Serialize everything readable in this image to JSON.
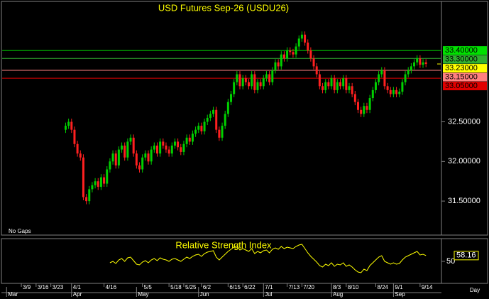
{
  "chart_data": {
    "type": "candlestick",
    "title": "USD Futures  Sep-26  (USDU26)",
    "note": "No Gaps",
    "x_unit": "Day",
    "up_color": "#00d000",
    "down_color": "#ff2020",
    "x": [
      15,
      16,
      17,
      18,
      19,
      20,
      21,
      22,
      23,
      24,
      25,
      26,
      27,
      28,
      29,
      30,
      31,
      32,
      33,
      34,
      35,
      36,
      37,
      38,
      39,
      40,
      41,
      42,
      43,
      44,
      45,
      46,
      47,
      48,
      49,
      50,
      51,
      52,
      53,
      54,
      55,
      56,
      57,
      58,
      59,
      60,
      61,
      62,
      63,
      64,
      65,
      66,
      67,
      68,
      69,
      70,
      71,
      72,
      73,
      74,
      75,
      76,
      77,
      78,
      79,
      80,
      81,
      82,
      83,
      84,
      85,
      86,
      87,
      88,
      89,
      90,
      91,
      92,
      93,
      94,
      95,
      96,
      97,
      98,
      99,
      100,
      101,
      102,
      103,
      104,
      105,
      106,
      107,
      108,
      109,
      110,
      111,
      112,
      113,
      114,
      115,
      116,
      117,
      118,
      119,
      120,
      121,
      122,
      123,
      124,
      125,
      126,
      127,
      128,
      129,
      130,
      131,
      132,
      133,
      134,
      135,
      136,
      137
    ],
    "open": [
      32.4,
      32.45,
      32.5,
      32.4,
      32.22,
      32.1,
      32.05,
      31.55,
      31.5,
      31.65,
      31.7,
      31.75,
      31.68,
      31.8,
      31.72,
      31.9,
      32.0,
      32.1,
      31.95,
      32.15,
      32.2,
      32.05,
      32.25,
      32.3,
      32.1,
      31.95,
      31.9,
      32.05,
      32.1,
      32.0,
      32.15,
      32.2,
      32.1,
      32.25,
      32.2,
      32.15,
      32.1,
      32.2,
      32.25,
      32.18,
      32.12,
      32.22,
      32.3,
      32.25,
      32.35,
      32.4,
      32.45,
      32.38,
      32.5,
      32.55,
      32.6,
      32.65,
      32.4,
      32.3,
      32.45,
      32.6,
      32.75,
      32.85,
      33.0,
      33.1,
      32.95,
      33.05,
      33.0,
      32.95,
      33.1,
      32.9,
      33.0,
      32.95,
      33.05,
      33.1,
      33.0,
      33.15,
      33.25,
      33.2,
      33.35,
      33.3,
      33.4,
      33.38,
      33.35,
      33.45,
      33.55,
      33.6,
      33.5,
      33.4,
      33.3,
      33.2,
      33.1,
      32.95,
      32.9,
      33.0,
      32.95,
      33.05,
      32.9,
      33.0,
      32.95,
      33.05,
      32.9,
      32.95,
      32.85,
      32.75,
      32.65,
      32.6,
      32.7,
      32.65,
      32.8,
      32.9,
      33.0,
      33.1,
      33.15,
      32.95,
      32.9,
      32.85,
      32.9,
      32.85,
      32.88,
      33.0,
      33.1,
      33.15,
      33.2,
      33.25,
      33.3,
      33.22,
      33.25
    ],
    "high": [
      32.49,
      32.54,
      32.54,
      32.44,
      32.26,
      32.14,
      32.09,
      31.59,
      31.69,
      31.74,
      31.79,
      31.79,
      31.84,
      31.84,
      31.94,
      32.04,
      32.14,
      32.14,
      32.19,
      32.24,
      32.24,
      32.29,
      32.34,
      32.34,
      32.14,
      31.99,
      32.09,
      32.14,
      32.14,
      32.19,
      32.24,
      32.24,
      32.29,
      32.29,
      32.24,
      32.19,
      32.24,
      32.29,
      32.29,
      32.22,
      32.26,
      32.34,
      32.34,
      32.39,
      32.44,
      32.49,
      32.49,
      32.54,
      32.59,
      32.64,
      32.69,
      32.69,
      32.44,
      32.49,
      32.64,
      32.79,
      32.89,
      33.04,
      33.14,
      33.14,
      33.09,
      33.09,
      33.04,
      33.14,
      33.14,
      33.04,
      33.04,
      33.09,
      33.14,
      33.14,
      33.19,
      33.29,
      33.29,
      33.39,
      33.39,
      33.44,
      33.44,
      33.42,
      33.49,
      33.59,
      33.64,
      33.64,
      33.54,
      33.44,
      33.34,
      33.24,
      33.14,
      32.99,
      33.04,
      33.04,
      33.09,
      33.09,
      33.04,
      33.04,
      33.09,
      33.09,
      32.99,
      32.99,
      32.89,
      32.79,
      32.69,
      32.74,
      32.74,
      32.84,
      32.94,
      33.04,
      33.14,
      33.19,
      33.19,
      32.99,
      32.94,
      32.94,
      32.94,
      32.92,
      33.04,
      33.14,
      33.19,
      33.24,
      33.29,
      33.34,
      33.34,
      33.29,
      33.29
    ],
    "low": [
      32.36,
      32.41,
      32.36,
      32.18,
      32.06,
      32.01,
      31.51,
      31.46,
      31.46,
      31.61,
      31.66,
      31.64,
      31.64,
      31.68,
      31.68,
      31.86,
      31.96,
      31.91,
      31.91,
      32.11,
      32.01,
      32.01,
      32.21,
      32.06,
      31.91,
      31.86,
      31.86,
      32.01,
      31.96,
      31.96,
      32.11,
      32.06,
      32.06,
      32.16,
      32.11,
      32.06,
      32.06,
      32.16,
      32.14,
      32.08,
      32.08,
      32.18,
      32.21,
      32.21,
      32.31,
      32.36,
      32.34,
      32.34,
      32.46,
      32.51,
      32.56,
      32.36,
      32.26,
      32.26,
      32.41,
      32.56,
      32.71,
      32.81,
      32.96,
      32.91,
      32.91,
      32.96,
      32.91,
      32.91,
      32.86,
      32.86,
      32.91,
      32.91,
      33.01,
      32.96,
      32.96,
      33.11,
      33.16,
      33.16,
      33.26,
      33.26,
      33.34,
      33.31,
      33.31,
      33.41,
      33.51,
      33.46,
      33.36,
      33.26,
      33.16,
      33.06,
      32.91,
      32.86,
      32.86,
      32.91,
      32.91,
      32.86,
      32.86,
      32.91,
      32.91,
      32.86,
      32.86,
      32.81,
      32.71,
      32.61,
      32.56,
      32.56,
      32.61,
      32.61,
      32.76,
      32.86,
      32.96,
      33.06,
      32.91,
      32.86,
      32.81,
      32.81,
      32.81,
      32.81,
      32.84,
      32.96,
      33.06,
      33.11,
      33.16,
      33.21,
      33.18,
      33.18,
      33.19
    ],
    "close": [
      32.45,
      32.5,
      32.4,
      32.22,
      32.1,
      32.05,
      31.55,
      31.5,
      31.65,
      31.7,
      31.75,
      31.68,
      31.8,
      31.72,
      31.9,
      32.0,
      32.1,
      31.95,
      32.15,
      32.2,
      32.05,
      32.25,
      32.3,
      32.1,
      31.95,
      31.9,
      32.05,
      32.1,
      32.0,
      32.15,
      32.2,
      32.1,
      32.25,
      32.2,
      32.15,
      32.1,
      32.2,
      32.25,
      32.18,
      32.12,
      32.22,
      32.3,
      32.25,
      32.35,
      32.4,
      32.45,
      32.38,
      32.5,
      32.55,
      32.6,
      32.65,
      32.4,
      32.3,
      32.45,
      32.6,
      32.75,
      32.85,
      33.0,
      33.1,
      32.95,
      33.05,
      33.0,
      32.95,
      33.1,
      32.9,
      33.0,
      32.95,
      33.05,
      33.1,
      33.0,
      33.15,
      33.25,
      33.2,
      33.35,
      33.3,
      33.4,
      33.38,
      33.35,
      33.45,
      33.55,
      33.6,
      33.5,
      33.4,
      33.3,
      33.2,
      33.1,
      32.95,
      32.9,
      33.0,
      32.95,
      33.05,
      32.9,
      33.0,
      32.95,
      33.05,
      32.9,
      32.95,
      32.85,
      32.75,
      32.65,
      32.6,
      32.7,
      32.65,
      32.8,
      32.9,
      33.0,
      33.1,
      33.15,
      32.95,
      32.9,
      32.85,
      32.9,
      32.85,
      32.88,
      33.0,
      33.1,
      33.15,
      33.2,
      33.25,
      33.3,
      33.22,
      33.25,
      33.23
    ],
    "xlim": [
      -6.5,
      142
    ],
    "xticks": [
      {
        "value": 0,
        "label": "3/9"
      },
      {
        "value": 5,
        "label": "3/16"
      },
      {
        "value": 10,
        "label": "3/23"
      },
      {
        "value": 17,
        "label": "4/1"
      },
      {
        "value": 28,
        "label": "4/16"
      },
      {
        "value": 41,
        "label": "5/5"
      },
      {
        "value": 50,
        "label": "5/18"
      },
      {
        "value": 55,
        "label": "5/25"
      },
      {
        "value": 61,
        "label": "6/2"
      },
      {
        "value": 70,
        "label": "6/15"
      },
      {
        "value": 75,
        "label": "6/22"
      },
      {
        "value": 82,
        "label": "7/1"
      },
      {
        "value": 90,
        "label": "7/13"
      },
      {
        "value": 95,
        "label": "7/20"
      },
      {
        "value": 105,
        "label": "8/3"
      },
      {
        "value": 110,
        "label": "8/10"
      },
      {
        "value": 120,
        "label": "8/24"
      },
      {
        "value": 126,
        "label": "9/1"
      },
      {
        "value": 135,
        "label": "9/14"
      }
    ],
    "month_ticks": [
      {
        "value": -5,
        "label": "Mar"
      },
      {
        "value": 17,
        "label": "Apr"
      },
      {
        "value": 39,
        "label": "May"
      },
      {
        "value": 60,
        "label": "Jun"
      },
      {
        "value": 82,
        "label": "Jul"
      },
      {
        "value": 105,
        "label": "Aug"
      },
      {
        "value": 126,
        "label": "Sep"
      }
    ],
    "ylim": [
      31.08,
      34.01
    ],
    "yticks": [
      {
        "value": 31.5,
        "label": "31.50000"
      },
      {
        "value": 32.0,
        "label": "32.00000"
      },
      {
        "value": 32.5,
        "label": "32.50000"
      }
    ],
    "levels": [
      {
        "value": 33.4,
        "label": "33.40000",
        "color": "#00e000",
        "line": true
      },
      {
        "value": 33.3,
        "label": "33.30000",
        "color": "#30b030",
        "line": true
      },
      {
        "value": 33.23,
        "label": "33.23000",
        "color": "#ffff00",
        "line": false
      },
      {
        "value": 33.15,
        "label": "33.15000",
        "color": "#ff8080",
        "line": true
      },
      {
        "value": 33.05,
        "label": "33.05000",
        "color": "#e00000",
        "line": true
      }
    ],
    "rsi": {
      "title": "Relative Strength Index",
      "color": "#ffff00",
      "ylim": [
        20,
        80
      ],
      "yticks": [
        50
      ],
      "values": [
        null,
        null,
        null,
        null,
        null,
        null,
        null,
        null,
        null,
        null,
        null,
        null,
        null,
        null,
        null,
        48,
        50,
        47,
        52,
        54,
        50,
        55,
        56,
        51,
        46,
        45,
        49,
        51,
        48,
        52,
        54,
        51,
        55,
        53,
        52,
        50,
        53,
        54,
        52,
        50,
        53,
        56,
        54,
        57,
        59,
        60,
        57,
        61,
        63,
        64,
        65,
        56,
        52,
        56,
        60,
        64,
        67,
        70,
        72,
        66,
        68,
        66,
        64,
        68,
        61,
        64,
        62,
        65,
        66,
        62,
        67,
        69,
        67,
        71,
        68,
        70,
        69,
        68,
        71,
        73,
        74,
        68,
        62,
        57,
        53,
        49,
        44,
        42,
        46,
        44,
        48,
        43,
        46,
        45,
        48,
        43,
        45,
        42,
        38,
        35,
        34,
        39,
        37,
        44,
        48,
        52,
        56,
        58,
        50,
        48,
        46,
        48,
        46,
        47,
        52,
        56,
        58,
        60,
        62,
        64,
        59,
        60,
        58.16
      ]
    }
  }
}
